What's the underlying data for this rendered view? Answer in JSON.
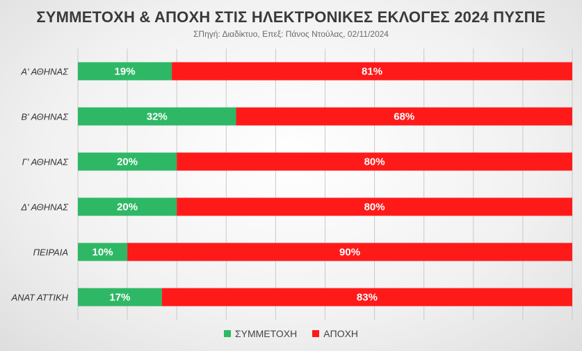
{
  "chart_data": {
    "type": "bar",
    "orientation": "horizontal",
    "stacked": true,
    "title": "ΣΥΜΜΕΤΟΧΗ & ΑΠΟΧΗ ΣΤΙΣ ΗΛΕΚΤΡΟΝΙΚΕΣ ΕΚΛΟΓΕΣ 2024 ΠΥΣΠΕ",
    "subtitle": "ΣΠηγή: Διαδίκτυο, Επεξ: Πάνος Ντούλας, 02/11/2024",
    "categories": [
      "Α' ΑΘΗΝΑΣ",
      "Β' ΑΘΗΝΑΣ",
      "Γ' ΑΘΗΝΑΣ",
      "Δ' ΑΘΗΝΑΣ",
      "ΠΕΙΡΑΙΑ",
      "ΑΝΑΤ ΑΤΤΙΚΗ"
    ],
    "series": [
      {
        "name": "ΣΥΜΜΕΤΟΧΗ",
        "values": [
          19,
          32,
          20,
          20,
          10,
          17
        ],
        "labels": [
          "19%",
          "32%",
          "20%",
          "20%",
          "10%",
          "17%"
        ],
        "color": "#2eb865"
      },
      {
        "name": "ΑΠΟΧΗ",
        "values": [
          81,
          68,
          80,
          80,
          90,
          83
        ],
        "labels": [
          "81%",
          "68%",
          "80%",
          "80%",
          "90%",
          "83%"
        ],
        "color": "#ff1a1a"
      }
    ],
    "xlim": [
      0,
      100
    ],
    "grid": true,
    "legend_position": "bottom"
  }
}
